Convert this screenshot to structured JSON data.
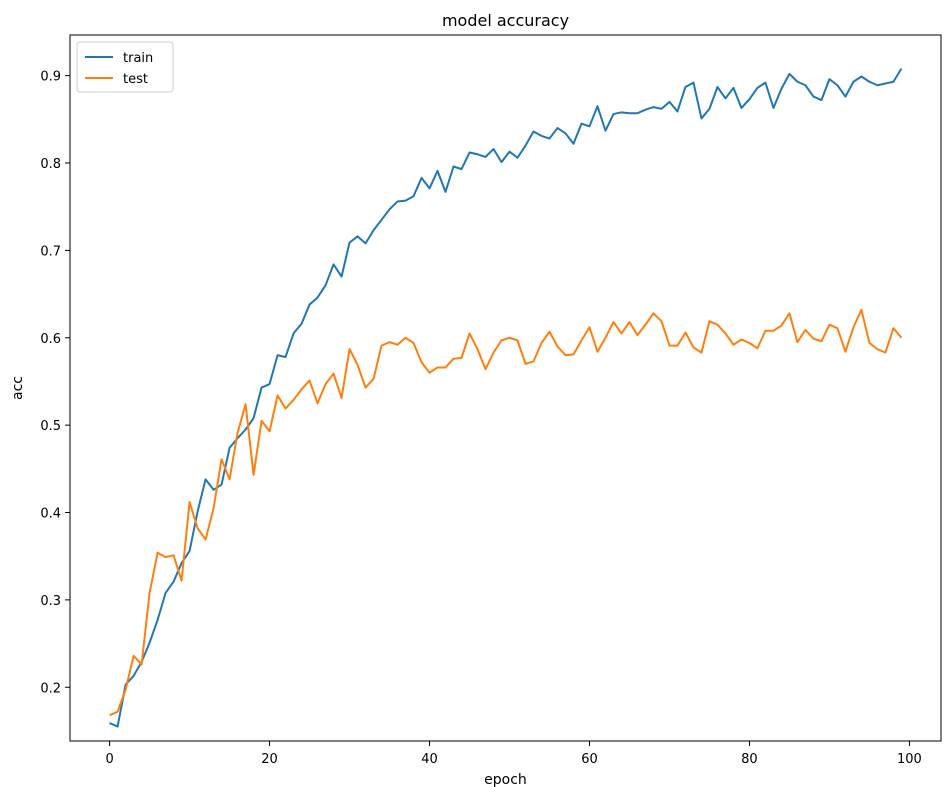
{
  "chart_data": {
    "type": "line",
    "title": "model accuracy",
    "xlabel": "epoch",
    "ylabel": "acc",
    "xlim": [
      -4.95,
      103.95
    ],
    "ylim": [
      0.1385,
      0.9465
    ],
    "xticks": [
      0,
      20,
      40,
      60,
      80,
      100
    ],
    "xtick_labels": [
      "0",
      "20",
      "40",
      "60",
      "80",
      "100"
    ],
    "yticks": [
      0.2,
      0.3,
      0.4,
      0.5,
      0.6,
      0.7,
      0.8,
      0.9
    ],
    "ytick_labels": [
      "0.2",
      "0.3",
      "0.4",
      "0.5",
      "0.6",
      "0.7",
      "0.8",
      "0.9"
    ],
    "grid": false,
    "legend": "upper left",
    "series": [
      {
        "name": "train",
        "color": "#1f77b4",
        "values": [
          0.159,
          0.155,
          0.203,
          0.213,
          0.229,
          0.251,
          0.277,
          0.308,
          0.321,
          0.342,
          0.356,
          0.401,
          0.438,
          0.426,
          0.432,
          0.474,
          0.485,
          0.495,
          0.508,
          0.543,
          0.547,
          0.58,
          0.578,
          0.605,
          0.616,
          0.638,
          0.646,
          0.66,
          0.684,
          0.67,
          0.709,
          0.716,
          0.708,
          0.723,
          0.735,
          0.747,
          0.756,
          0.757,
          0.762,
          0.783,
          0.771,
          0.791,
          0.767,
          0.796,
          0.793,
          0.812,
          0.81,
          0.807,
          0.816,
          0.801,
          0.813,
          0.806,
          0.82,
          0.836,
          0.831,
          0.828,
          0.84,
          0.834,
          0.822,
          0.845,
          0.842,
          0.865,
          0.837,
          0.856,
          0.858,
          0.857,
          0.857,
          0.861,
          0.864,
          0.862,
          0.87,
          0.859,
          0.887,
          0.892,
          0.851,
          0.862,
          0.887,
          0.874,
          0.886,
          0.863,
          0.873,
          0.886,
          0.892,
          0.863,
          0.885,
          0.902,
          0.893,
          0.889,
          0.876,
          0.872,
          0.896,
          0.889,
          0.876,
          0.893,
          0.899,
          0.893,
          0.889,
          0.891,
          0.893,
          0.908
        ]
      },
      {
        "name": "test",
        "color": "#ff7f0e",
        "values": [
          0.168,
          0.172,
          0.197,
          0.236,
          0.226,
          0.308,
          0.354,
          0.349,
          0.351,
          0.322,
          0.412,
          0.382,
          0.369,
          0.405,
          0.461,
          0.438,
          0.491,
          0.524,
          0.443,
          0.505,
          0.493,
          0.534,
          0.519,
          0.529,
          0.541,
          0.551,
          0.525,
          0.547,
          0.559,
          0.531,
          0.587,
          0.569,
          0.543,
          0.553,
          0.591,
          0.595,
          0.592,
          0.6,
          0.594,
          0.572,
          0.56,
          0.566,
          0.566,
          0.576,
          0.577,
          0.605,
          0.587,
          0.564,
          0.583,
          0.597,
          0.6,
          0.597,
          0.57,
          0.573,
          0.594,
          0.607,
          0.59,
          0.58,
          0.581,
          0.597,
          0.612,
          0.584,
          0.6,
          0.618,
          0.605,
          0.618,
          0.603,
          0.615,
          0.628,
          0.619,
          0.591,
          0.591,
          0.606,
          0.589,
          0.583,
          0.619,
          0.615,
          0.605,
          0.592,
          0.598,
          0.594,
          0.588,
          0.608,
          0.608,
          0.614,
          0.628,
          0.595,
          0.609,
          0.599,
          0.596,
          0.615,
          0.611,
          0.584,
          0.612,
          0.632,
          0.594,
          0.587,
          0.583,
          0.611,
          0.6
        ]
      }
    ]
  }
}
